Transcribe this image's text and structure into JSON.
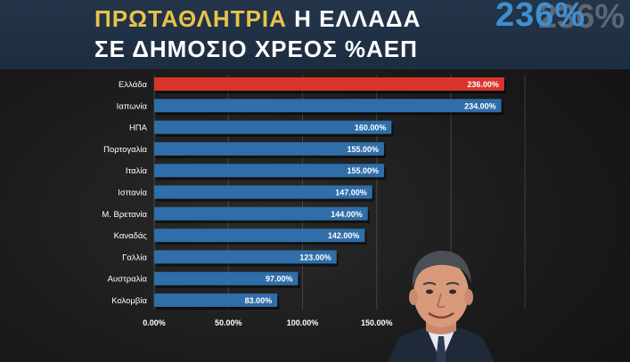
{
  "header": {
    "title_accent": "ΠΡΩΤΑΘΛΗΤΡΙΑ",
    "title_rest": " Η ΕΛΛΑΔΑ",
    "subtitle": "ΣΕ ΔΗΜΟΣΙΟ ΧΡΕΟΣ %ΑΕΠ",
    "big_value": "236%",
    "big_value_ghost": "236%"
  },
  "colors": {
    "highlight_bar": "#d7352c",
    "bar": "#2f6ea8",
    "text": "#ffffff",
    "accent": "#e8c34a"
  },
  "chart_data": {
    "type": "bar",
    "orientation": "horizontal",
    "title": "ΠΡΩΤΑΘΛΗΤΡΙΑ Η ΕΛΛΑΔΑ ΣΕ ΔΗΜΟΣΙΟ ΧΡΕΟΣ %ΑΕΠ",
    "categories": [
      "Ελλάδα",
      "Ιαπωνία",
      "ΗΠΑ",
      "Πορτογαλία",
      "Ιταλία",
      "Ισπανία",
      "Μ. Βρετανία",
      "Καναδάς",
      "Γαλλία",
      "Αυστραλία",
      "Κολομβία"
    ],
    "values": [
      236,
      234,
      160,
      155,
      155,
      147,
      144,
      142,
      123,
      97,
      83
    ],
    "value_labels": [
      "236.00%",
      "234.00%",
      "160.00%",
      "155.00%",
      "155.00%",
      "147.00%",
      "144.00%",
      "142.00%",
      "123.00%",
      "97.00%",
      "83.00%"
    ],
    "highlight_index": 0,
    "x_ticks": [
      0,
      50,
      100,
      150
    ],
    "x_tick_labels": [
      "0.00%",
      "50.00%",
      "100.00%",
      "150.00%"
    ],
    "xlim": [
      0,
      250
    ],
    "grid": true,
    "legend": "none"
  }
}
